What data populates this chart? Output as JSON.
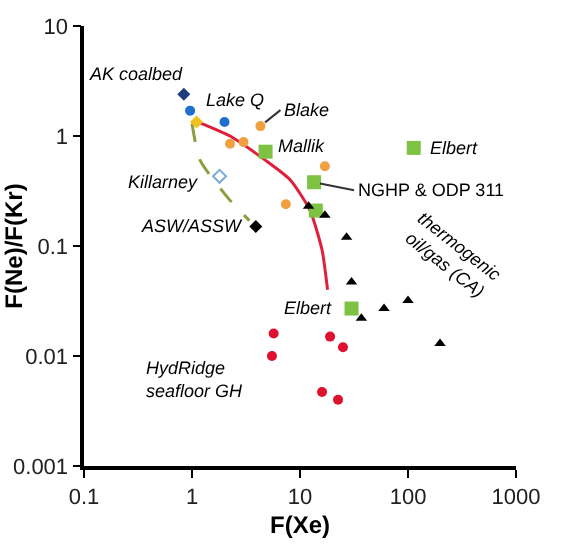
{
  "chart_data": {
    "type": "scatter",
    "xlabel": "F(Xe)",
    "ylabel": "F(Ne)/F(Kr)",
    "log": "xy",
    "xlim": [
      0.1,
      1000
    ],
    "ylim": [
      0.001,
      10
    ],
    "xticks": [
      0.1,
      1,
      10,
      100,
      1000
    ],
    "yticks": [
      0.001,
      0.01,
      0.1,
      1,
      10
    ],
    "grid": false,
    "series": [
      {
        "type": "line",
        "color": "#e0203a",
        "line_style": "solid",
        "marker": "none",
        "x": [
          1.14,
          2.25,
          4.8,
          8.1,
          12.4,
          16,
          18
        ],
        "values": [
          1.34,
          1.0,
          0.6,
          0.4,
          0.21,
          0.092,
          0.04
        ]
      },
      {
        "type": "line",
        "color": "#8aa040",
        "line_style": "dashed",
        "marker": "none",
        "x": [
          1,
          1.19,
          2.25,
          3.4
        ],
        "values": [
          1.29,
          0.6,
          0.26,
          0.17
        ]
      },
      {
        "color": "#1f3d7a",
        "marker": "diamond",
        "x": [
          0.84
        ],
        "values": [
          2.4
        ]
      },
      {
        "color": "#1f6fd0",
        "marker": "circle",
        "x": [
          0.96,
          2.0
        ],
        "values": [
          1.7,
          1.34
        ]
      },
      {
        "color": "#f0c020",
        "marker": "diamond",
        "x": [
          1.1
        ],
        "values": [
          1.34
        ]
      },
      {
        "color": "#f0a040",
        "marker": "circle",
        "x": [
          2.25,
          3.0,
          4.3,
          17,
          7.4
        ],
        "values": [
          0.85,
          0.88,
          1.23,
          0.53,
          0.24
        ]
      },
      {
        "color": "#7dc242",
        "marker": "square",
        "x": [
          4.8,
          13.5,
          14,
          113,
          30
        ],
        "values": [
          0.72,
          0.38,
          0.21,
          0.78,
          0.027
        ]
      },
      {
        "color": "#7fa8d8",
        "marker": "diamond-open",
        "x": [
          1.8
        ],
        "values": [
          0.43
        ]
      },
      {
        "color": "#000000",
        "marker": "diamond",
        "x": [
          3.9
        ],
        "values": [
          0.15
        ]
      },
      {
        "color": "#000000",
        "marker": "triangle",
        "x": [
          12,
          17,
          27,
          30,
          37,
          60,
          100,
          198
        ],
        "values": [
          0.23,
          0.19,
          0.12,
          0.047,
          0.022,
          0.027,
          0.032,
          0.013
        ]
      },
      {
        "color": "#e0102f",
        "marker": "circle",
        "x": [
          5.7,
          5.5,
          19,
          25,
          16,
          22.5
        ],
        "values": [
          0.016,
          0.01,
          0.015,
          0.012,
          0.0047,
          0.004
        ]
      }
    ],
    "annotations": [
      {
        "text": "AK coalbed",
        "x": 0.84,
        "y": 2.4
      },
      {
        "text": "Lake Q",
        "x": 0.96,
        "y": 1.7
      },
      {
        "text": "Blake",
        "x": 4.3,
        "y": 1.23
      },
      {
        "text": "Mallik",
        "x": 4.8,
        "y": 0.72
      },
      {
        "text": "Elbert",
        "x": 113,
        "y": 0.78
      },
      {
        "text": "NGHP & ODP 311",
        "x": 13.5,
        "y": 0.38
      },
      {
        "text": "Killarney",
        "x": 1.8,
        "y": 0.43
      },
      {
        "text": "ASW/ASSW",
        "x": 3.9,
        "y": 0.15
      },
      {
        "text": "thermogenic oil/gas (CA)",
        "x": 100,
        "y": 0.032
      },
      {
        "text": "HydRidge seafloor GH",
        "x": 5.5,
        "y": 0.01
      },
      {
        "text": "Elbert",
        "x": 30,
        "y": 0.027
      }
    ]
  }
}
